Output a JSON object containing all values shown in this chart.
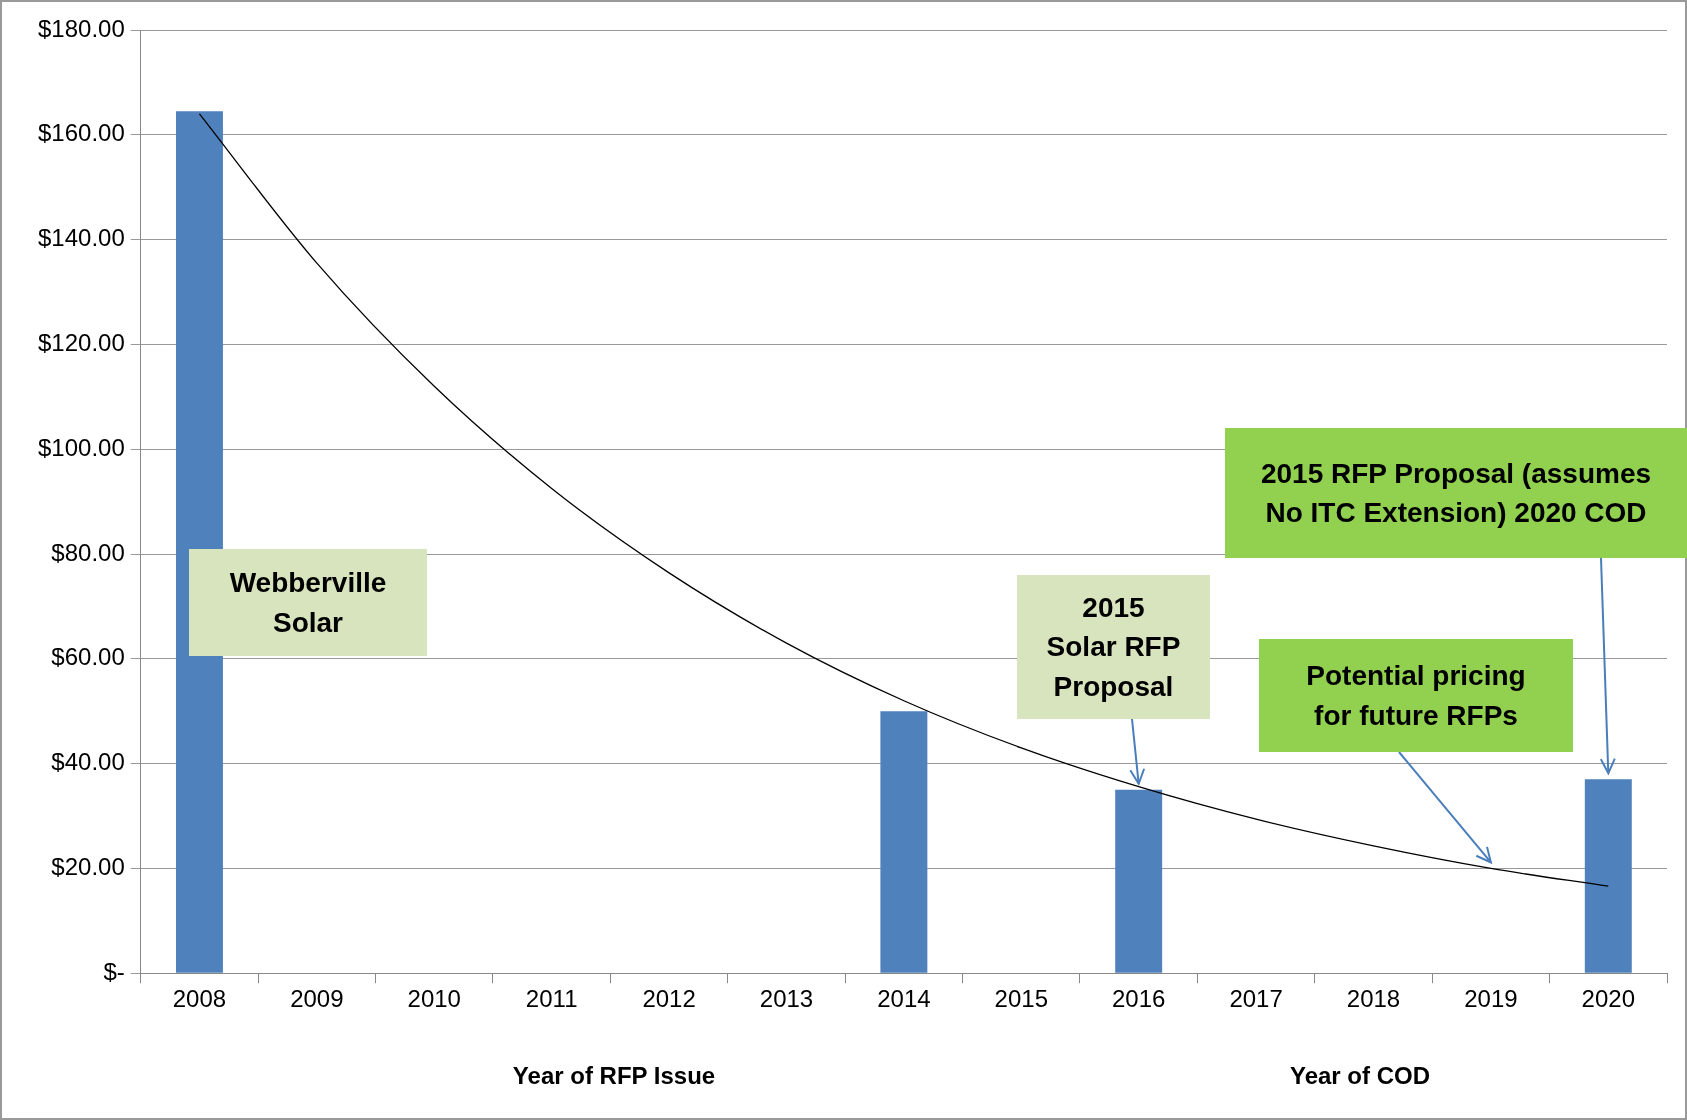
{
  "chart_data": {
    "type": "bar",
    "xlabel": "Year of RFP Issue",
    "categories": [
      "2008",
      "2009",
      "2010",
      "2011",
      "2012",
      "2013",
      "2014",
      "2015",
      "2016",
      "2017",
      "2018",
      "2019",
      "2020"
    ],
    "series": [
      {
        "color": "#4f81bd",
        "values": [
          164.5,
          null,
          null,
          null,
          null,
          null,
          50,
          null,
          35,
          null,
          null,
          null,
          37
        ]
      },
      {
        "type": "line",
        "color": "#000000",
        "values": [
          164,
          135.5,
          112,
          92.5,
          76.4,
          63,
          52,
          43,
          35.6,
          29.4,
          24.3,
          20,
          16.6
        ]
      }
    ],
    "ylim": [
      0,
      180
    ],
    "yticks": [
      {
        "value": 0,
        "label": "$-"
      },
      {
        "value": 20,
        "label": "$20.00"
      },
      {
        "value": 40,
        "label": "$40.00"
      },
      {
        "value": 60,
        "label": "$60.00"
      },
      {
        "value": 80,
        "label": "$80.00"
      },
      {
        "value": 100,
        "label": "$100.00"
      },
      {
        "value": 120,
        "label": "$120.00"
      },
      {
        "value": 140,
        "label": "$140.00"
      },
      {
        "value": 160,
        "label": "$160.00"
      },
      {
        "value": 180,
        "label": "$180.00"
      }
    ],
    "grid": "y",
    "legend": false,
    "marker": "none",
    "line_style": "solid",
    "annotations": [
      "Webberville Solar",
      {
        "text": "2015 Solar RFP Proposal",
        "x": "2016",
        "y": 35
      },
      {
        "text": "Potential pricing for future RFPs",
        "x": "2019",
        "y": 20
      },
      {
        "text": "2015 RFP Proposal (assumes No ITC Extension) 2020 COD",
        "x": "2020",
        "y": 37
      },
      "Year of COD"
    ]
  }
}
